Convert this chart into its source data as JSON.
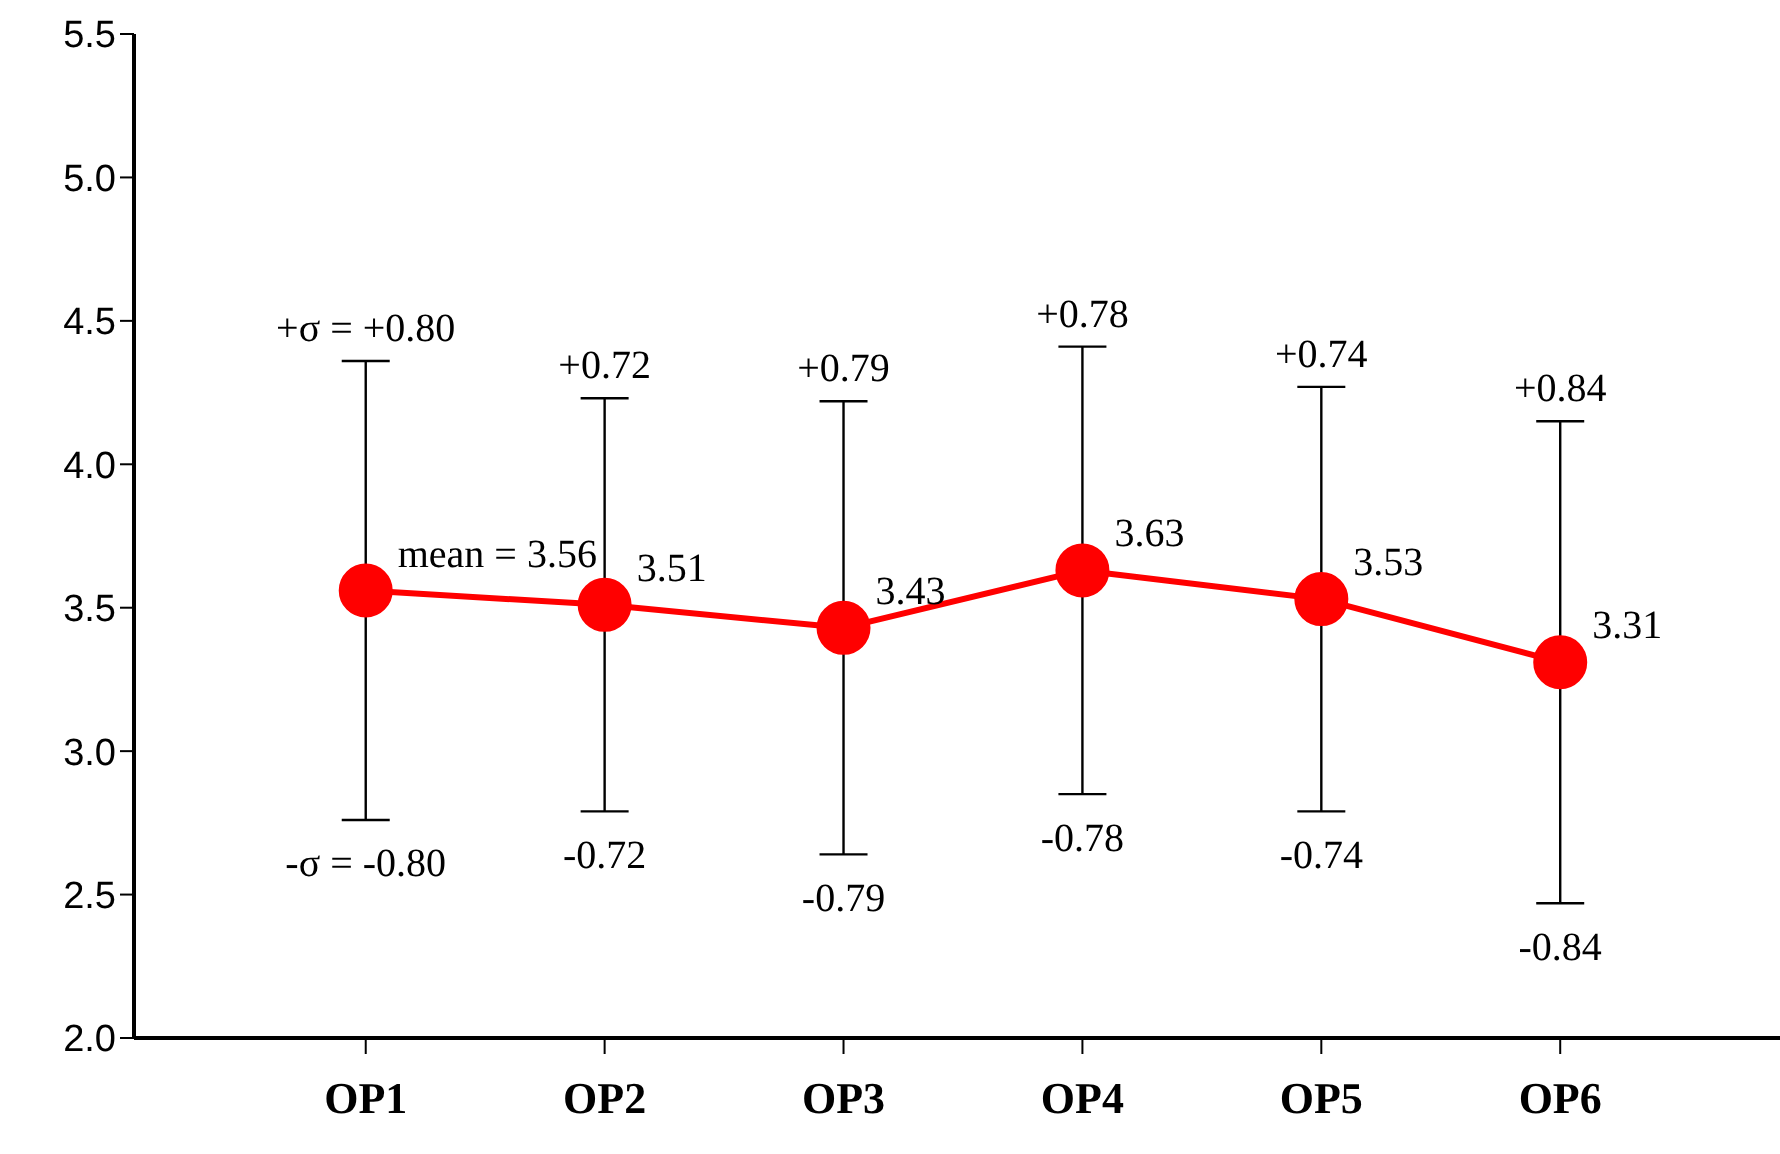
{
  "chart_data": {
    "type": "line",
    "categories": [
      "OP1",
      "OP2",
      "OP3",
      "OP4",
      "OP5",
      "OP6"
    ],
    "series": [
      {
        "color": "#ff0000",
        "values": [
          3.56,
          3.51,
          3.43,
          3.63,
          3.53,
          3.31
        ],
        "errors": [
          0.8,
          0.72,
          0.79,
          0.78,
          0.74,
          0.84
        ],
        "value_labels": [
          "mean = 3.56",
          "3.51",
          "3.43",
          "3.63",
          "3.53",
          "3.31"
        ]
      }
    ],
    "ylim": [
      2.0,
      5.5
    ],
    "yticks": [
      {
        "value": 2.0,
        "label": "2.0"
      },
      {
        "value": 2.5,
        "label": "2.5"
      },
      {
        "value": 3.0,
        "label": "3.0"
      },
      {
        "value": 3.5,
        "label": "3.5"
      },
      {
        "value": 4.0,
        "label": "4.0"
      },
      {
        "value": 4.5,
        "label": "4.5"
      },
      {
        "value": 5.0,
        "label": "5.0"
      },
      {
        "value": 5.5,
        "label": "5.5"
      }
    ],
    "marker": "circle",
    "grid": false,
    "legend": false,
    "annotations": [
      {
        "text": "+σ = +0.80",
        "x": "OP1",
        "y": 4.36
      },
      {
        "text": "-σ = -0.80",
        "x": "OP1",
        "y": 2.76
      },
      {
        "text": "+0.72",
        "x": "OP2",
        "y": 4.23
      },
      {
        "text": "-0.72",
        "x": "OP2",
        "y": 2.79
      },
      {
        "text": "+0.79",
        "x": "OP3",
        "y": 4.22
      },
      {
        "text": "-0.79",
        "x": "OP3",
        "y": 2.64
      },
      {
        "text": "+0.78",
        "x": "OP4",
        "y": 4.41
      },
      {
        "text": "-0.78",
        "x": "OP4",
        "y": 2.85
      },
      {
        "text": "+0.74",
        "x": "OP5",
        "y": 4.27
      },
      {
        "text": "-0.74",
        "x": "OP5",
        "y": 2.79
      },
      {
        "text": "+0.84",
        "x": "OP6",
        "y": 4.15
      },
      {
        "text": "-0.84",
        "x": "OP6",
        "y": 2.47
      }
    ]
  }
}
